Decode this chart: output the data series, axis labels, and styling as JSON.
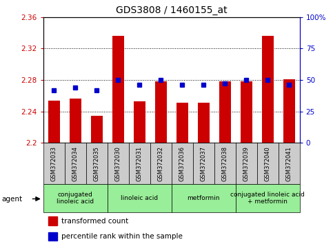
{
  "title": "GDS3808 / 1460155_at",
  "samples": [
    "GSM372033",
    "GSM372034",
    "GSM372035",
    "GSM372030",
    "GSM372031",
    "GSM372032",
    "GSM372036",
    "GSM372037",
    "GSM372038",
    "GSM372039",
    "GSM372040",
    "GSM372041"
  ],
  "bar_values": [
    2.254,
    2.256,
    2.234,
    2.336,
    2.253,
    2.278,
    2.251,
    2.251,
    2.278,
    2.278,
    2.336,
    2.281
  ],
  "dot_values": [
    42,
    44,
    42,
    50,
    46,
    50,
    46,
    46,
    47,
    50,
    50,
    46
  ],
  "ylim_left": [
    2.2,
    2.36
  ],
  "ylim_right": [
    0,
    100
  ],
  "yticks_left": [
    2.2,
    2.24,
    2.28,
    2.32,
    2.36
  ],
  "yticks_right": [
    0,
    25,
    50,
    75,
    100
  ],
  "ytick_labels_right": [
    "0",
    "25",
    "50",
    "75",
    "100%"
  ],
  "bar_color": "#cc0000",
  "dot_color": "#0000cc",
  "bar_bottom": 2.2,
  "grid_values": [
    2.24,
    2.28,
    2.32
  ],
  "agent_groups": [
    {
      "label": "conjugated\nlinoleic acid",
      "start": 0,
      "end": 3
    },
    {
      "label": "linoleic acid",
      "start": 3,
      "end": 6
    },
    {
      "label": "metformin",
      "start": 6,
      "end": 9
    },
    {
      "label": "conjugated linoleic acid\n+ metformin",
      "start": 9,
      "end": 12
    }
  ],
  "group_bg_color": "#99ee99",
  "sample_bg_color": "#cccccc",
  "legend_bar_label": "transformed count",
  "legend_dot_label": "percentile rank within the sample",
  "agent_label": "agent",
  "figsize": [
    4.83,
    3.54
  ],
  "dpi": 100
}
